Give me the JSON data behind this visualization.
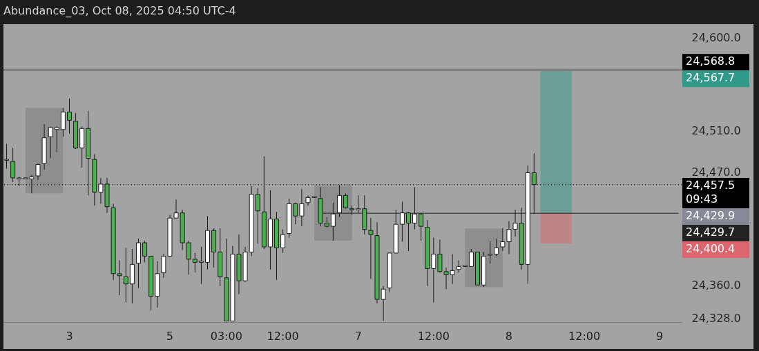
{
  "chart_data": {
    "type": "candlestick",
    "title": "Abundance_03, Oct 08, 2025 04:50 UTC-4",
    "categories": [
      null,
      null,
      null,
      null,
      null,
      null,
      null,
      null,
      null,
      null,
      "3",
      null,
      null,
      null,
      null,
      null,
      null,
      null,
      null,
      null,
      null,
      null,
      null,
      null,
      null,
      null,
      "5",
      null,
      null,
      null,
      null,
      null,
      null,
      null,
      null,
      "03:00",
      null,
      null,
      null,
      null,
      null,
      null,
      null,
      null,
      "12:00",
      null,
      null,
      null,
      null,
      null,
      null,
      null,
      null,
      null,
      null,
      null,
      "7",
      null,
      null,
      null,
      null,
      null,
      null,
      null,
      null,
      null,
      null,
      null,
      "12:00",
      null,
      null,
      null,
      null,
      null,
      null,
      null,
      null,
      null,
      null,
      null,
      "8",
      null,
      null,
      null,
      null,
      null,
      null,
      null,
      null,
      null,
      null,
      null,
      "12:00",
      null,
      null,
      null,
      null,
      null,
      null,
      null,
      null,
      null,
      null,
      null,
      "9",
      null,
      null,
      null
    ],
    "ohlc": [
      [
        24481,
        24497,
        24473,
        24482
      ],
      [
        24480,
        24493,
        24460,
        24464
      ],
      [
        24463,
        24465,
        24456,
        24464
      ],
      [
        24463,
        24464,
        24463,
        24464
      ],
      [
        24463,
        24467,
        24449,
        24465
      ],
      [
        24466,
        24478,
        24462,
        24477
      ],
      [
        24478,
        24516,
        24472,
        24503
      ],
      [
        24504,
        24514,
        24483,
        24513
      ],
      [
        24511,
        24514,
        24489,
        24513
      ],
      [
        24511,
        24532,
        24504,
        24528
      ],
      [
        24528,
        24541,
        24507,
        24520
      ],
      [
        24519,
        24527,
        24492,
        24493
      ],
      [
        24493,
        24514,
        24474,
        24512
      ],
      [
        24512,
        24529,
        24447,
        24483
      ],
      [
        24482,
        24487,
        24437,
        24450
      ],
      [
        24450,
        24464,
        24439,
        24458
      ],
      [
        24458,
        24464,
        24430,
        24436
      ],
      [
        24435,
        24439,
        24365,
        24371
      ],
      [
        24371,
        24384,
        24350,
        24369
      ],
      [
        24368,
        24396,
        24343,
        24361
      ],
      [
        24361,
        24395,
        24342,
        24380
      ],
      [
        24381,
        24405,
        24357,
        24401
      ],
      [
        24401,
        24403,
        24382,
        24388
      ],
      [
        24388,
        24388,
        24335,
        24349
      ],
      [
        24349,
        24383,
        24338,
        24371
      ],
      [
        24372,
        24390,
        24367,
        24388
      ],
      [
        24388,
        24428,
        24388,
        24425
      ],
      [
        24425,
        24443,
        24425,
        24430
      ],
      [
        24430,
        24433,
        24394,
        24401
      ],
      [
        24401,
        24403,
        24370,
        24385
      ],
      [
        24385,
        24391,
        24372,
        24382
      ],
      [
        24382,
        24397,
        24361,
        24383
      ],
      [
        24382,
        24427,
        24375,
        24413
      ],
      [
        24413,
        24415,
        24377,
        24392
      ],
      [
        24392,
        24415,
        24359,
        24368
      ],
      [
        24367,
        24405,
        24325,
        24325
      ],
      [
        24325,
        24398,
        24325,
        24390
      ],
      [
        24390,
        24409,
        24351,
        24364
      ],
      [
        24364,
        24397,
        24363,
        24392
      ],
      [
        24392,
        24456,
        24388,
        24448
      ],
      [
        24448,
        24454,
        24400,
        24432
      ],
      [
        24431,
        24485,
        24395,
        24397
      ],
      [
        24397,
        24452,
        24375,
        24424
      ],
      [
        24424,
        24431,
        24365,
        24396
      ],
      [
        24396,
        24414,
        24391,
        24409
      ],
      [
        24410,
        24444,
        24406,
        24439
      ],
      [
        24439,
        24440,
        24419,
        24427
      ],
      [
        24427,
        24453,
        24417,
        24439
      ],
      [
        24440,
        24447,
        24437,
        24445
      ],
      [
        24445,
        24446,
        24445,
        24446
      ],
      [
        24444,
        24455,
        24417,
        24420
      ],
      [
        24420,
        24426,
        24416,
        24417
      ],
      [
        24417,
        24440,
        24403,
        24429
      ],
      [
        24430,
        24457,
        24426,
        24447
      ],
      [
        24447,
        24449,
        24434,
        24435
      ],
      [
        24434,
        24437,
        24428,
        24433
      ],
      [
        24433,
        24447,
        24430,
        24434
      ],
      [
        24434,
        24447,
        24409,
        24414
      ],
      [
        24413,
        24425,
        24366,
        24409
      ],
      [
        24408,
        24421,
        24342,
        24346
      ],
      [
        24346,
        24359,
        24325,
        24356
      ],
      [
        24357,
        24391,
        24353,
        24391
      ],
      [
        24391,
        24433,
        24391,
        24419
      ],
      [
        24419,
        24441,
        24402,
        24430
      ],
      [
        24430,
        24431,
        24393,
        24420
      ],
      [
        24420,
        24455,
        24414,
        24429
      ],
      [
        24429,
        24430,
        24403,
        24417
      ],
      [
        24416,
        24423,
        24359,
        24376
      ],
      [
        24376,
        24406,
        24343,
        24390
      ],
      [
        24390,
        24404,
        24372,
        24373
      ],
      [
        24373,
        24377,
        24356,
        24370
      ],
      [
        24370,
        24390,
        24361,
        24374
      ],
      [
        24375,
        24384,
        24372,
        24378
      ],
      [
        24378,
        24379,
        24378,
        24379
      ],
      [
        24378,
        24395,
        24378,
        24392
      ],
      [
        24392,
        24392,
        24360,
        24360
      ],
      [
        24360,
        24392,
        24358,
        24388
      ],
      [
        24389,
        24403,
        24381,
        24390
      ],
      [
        24390,
        24405,
        24388,
        24396
      ],
      [
        24397,
        24415,
        24393,
        24402
      ],
      [
        24402,
        24422,
        24390,
        24414
      ],
      [
        24414,
        24433,
        24407,
        24420
      ],
      [
        24420,
        24435,
        24375,
        24380
      ],
      [
        24380,
        24476,
        24361,
        24469
      ],
      [
        24469,
        24488,
        24429,
        24457.5
      ],
      null,
      null,
      null,
      null,
      null,
      null,
      null,
      null,
      null,
      null,
      null,
      null,
      null,
      null,
      null,
      null,
      null,
      null,
      null,
      null,
      null,
      null,
      null
    ],
    "colors": [
      "#ffffff",
      "#4caf50",
      "#ffffff",
      "#ffffff",
      "#ffffff",
      "#ffffff",
      "#ffffff",
      "#ffffff",
      "#ffffff",
      "#ffffff",
      "#4caf50",
      "#4caf50",
      "#ffffff",
      "#4caf50",
      "#4caf50",
      "#ffffff",
      "#4caf50",
      "#4caf50",
      "#4caf50",
      "#4caf50",
      "#ffffff",
      "#ffffff",
      "#4caf50",
      "#4caf50",
      "#ffffff",
      "#ffffff",
      "#ffffff",
      "#ffffff",
      "#4caf50",
      "#4caf50",
      "#4caf50",
      "#ffffff",
      "#ffffff",
      "#4caf50",
      "#4caf50",
      "#4caf50",
      "#ffffff",
      "#4caf50",
      "#ffffff",
      "#ffffff",
      "#4caf50",
      "#4caf50",
      "#ffffff",
      "#4caf50",
      "#ffffff",
      "#ffffff",
      "#4caf50",
      "#ffffff",
      "#ffffff",
      "#ffffff",
      "#4caf50",
      "#4caf50",
      "#ffffff",
      "#ffffff",
      "#4caf50",
      "#4caf50",
      "#ffffff",
      "#4caf50",
      "#4caf50",
      "#4caf50",
      "#ffffff",
      "#ffffff",
      "#ffffff",
      "#ffffff",
      "#4caf50",
      "#ffffff",
      "#4caf50",
      "#4caf50",
      "#ffffff",
      "#4caf50",
      "#4caf50",
      "#ffffff",
      "#ffffff",
      "#ffffff",
      "#ffffff",
      "#4caf50",
      "#ffffff",
      "#ffffff",
      "#ffffff",
      "#ffffff",
      "#ffffff",
      "#ffffff",
      "#4caf50",
      "#ffffff",
      "#4caf50",
      null,
      null,
      null,
      null,
      null,
      null,
      null,
      null,
      null,
      null,
      null,
      null,
      null,
      null,
      null,
      null,
      null,
      null,
      null,
      null,
      null,
      null,
      null
    ],
    "series": [
      {
        "type": "line",
        "color": "#222222",
        "values": [
          null,
          null,
          null,
          null,
          null,
          null,
          null,
          null,
          null,
          null,
          null,
          null,
          null,
          null,
          null,
          null,
          null,
          null,
          null,
          null,
          null,
          null,
          null,
          null,
          null,
          null,
          null,
          null,
          null,
          null,
          null,
          null,
          null,
          null,
          null,
          null,
          null,
          null,
          null,
          null,
          null,
          null,
          null,
          null,
          null,
          null,
          null,
          null,
          null,
          null,
          24429.7,
          24429.7,
          24429.7,
          24429.7,
          24429.7,
          24429.7,
          24429.7,
          24429.7,
          24429.7,
          24429.7,
          24429.7,
          24429.7,
          24429.7,
          24429.7,
          24429.7,
          24429.7,
          24429.7,
          24429.7,
          24429.7,
          24429.7,
          24429.7,
          24429.7,
          24429.7,
          24429.7,
          24429.7,
          24429.7,
          24429.7,
          24429.7,
          24429.7,
          24429.7,
          24429.7,
          24429.7,
          24429.7,
          24429.7,
          24429.7,
          24429.7,
          24429.7,
          24429.7,
          24429.7,
          24429.7,
          24429.7,
          24429.7,
          24429.7,
          24429.7,
          24429.7,
          24429.7,
          24429.7,
          24429.7,
          24429.7,
          24429.7,
          24429.7,
          24429.7,
          24429.7,
          24429.7,
          24429.7,
          24429.7,
          24429.7,
          24429.7
        ],
        "value_labels": [
          null,
          null,
          null,
          null,
          null,
          null,
          null,
          null,
          null,
          null,
          null,
          null,
          null,
          null,
          null,
          null,
          null,
          null,
          null,
          null,
          null,
          null,
          null,
          null,
          null,
          null,
          null,
          null,
          null,
          null,
          null,
          null,
          null,
          null,
          null,
          null,
          null,
          null,
          null,
          null,
          null,
          null,
          null,
          null,
          null,
          null,
          null,
          null,
          null,
          null,
          null,
          null,
          null,
          null,
          null,
          null,
          null,
          null,
          null,
          null,
          null,
          null,
          null,
          null,
          null,
          null,
          null,
          null,
          null,
          null,
          null,
          null,
          null,
          null,
          null,
          null,
          null,
          null,
          null,
          null,
          null,
          null,
          null,
          null,
          null,
          null,
          null,
          null,
          null,
          null,
          null,
          null,
          null,
          null,
          null,
          null,
          null,
          null,
          null,
          null,
          null,
          null,
          null,
          null,
          null,
          null,
          null,
          "24,429.7"
        ]
      }
    ],
    "bands": [
      {
        "axis": "y",
        "from": 24449,
        "to": 24532,
        "color": "#8e8e8e"
      },
      {
        "axis": "y",
        "from": 24403,
        "to": 24457,
        "color": "#8e8e8e"
      },
      {
        "axis": "y",
        "from": 24358,
        "to": 24415,
        "color": "#8e8e8e"
      },
      {
        "axis": "y",
        "from": 24429.9,
        "to": 24567.7,
        "color": "#6a9e96"
      },
      {
        "axis": "y",
        "from": 24400.4,
        "to": 24429.9,
        "color": "#c08488"
      }
    ],
    "ref_lines": [
      {
        "axis": "y",
        "value": 24568.8,
        "label": "24,568.8",
        "color": "#000000",
        "line_style": "solid"
      },
      {
        "axis": "y",
        "value": 24457.5,
        "label": "24,457.5\n09:43",
        "color": "#000000",
        "line_style": "dotted"
      }
    ],
    "annotations": [
      "24,567.7",
      "24,429.9",
      "24,400.4"
    ],
    "ylim": [
      24324,
      24612
    ],
    "yticks": [
      {
        "value": 24600,
        "label": "24,600.0"
      },
      {
        "value": 24510,
        "label": "24,510.0"
      },
      {
        "value": 24470,
        "label": "24,470.0"
      },
      {
        "value": 24360,
        "label": "24,360.0"
      },
      {
        "value": 24328,
        "label": "24,328.0"
      }
    ]
  }
}
